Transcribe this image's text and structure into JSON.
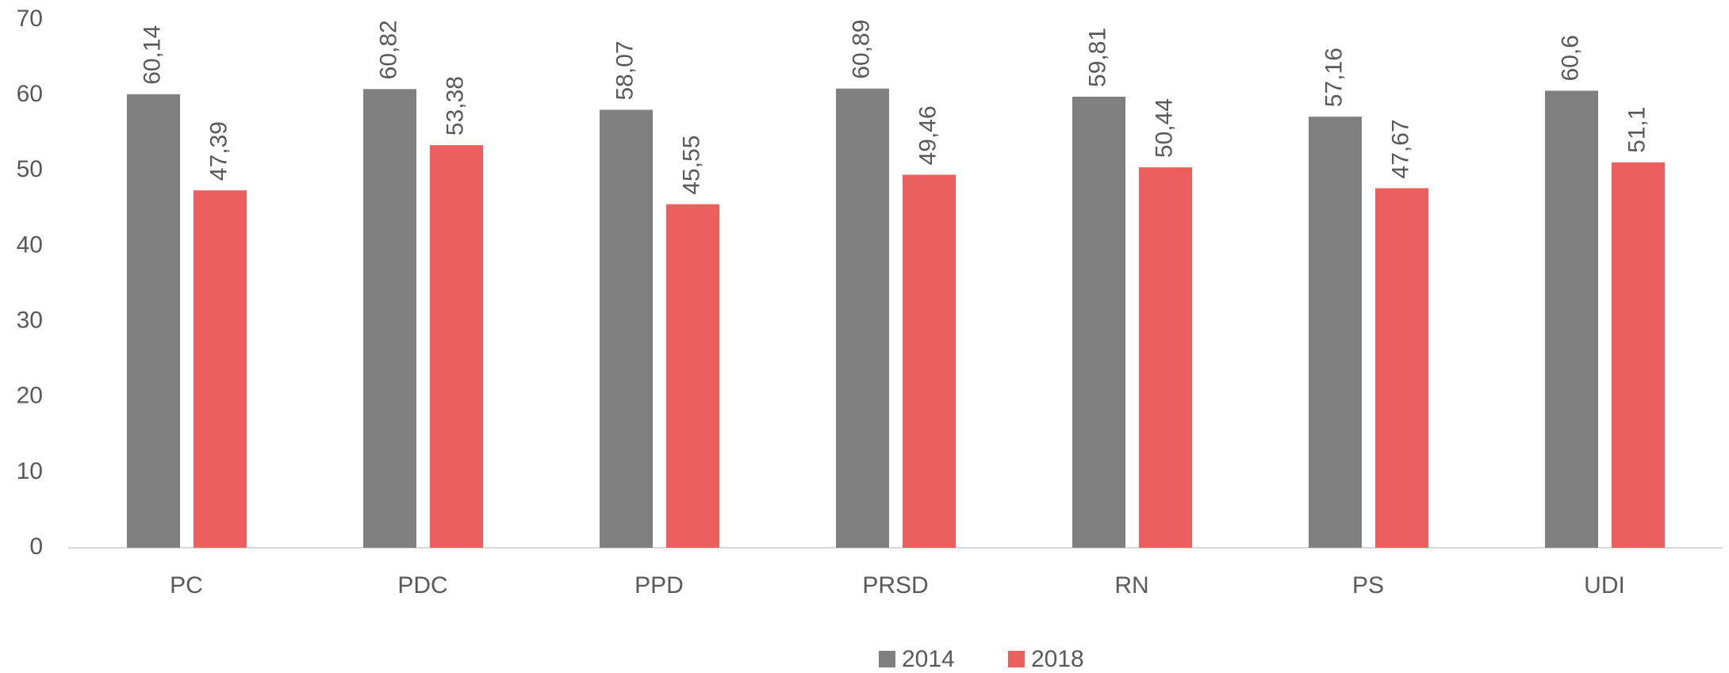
{
  "chart_data": {
    "type": "bar",
    "categories": [
      "PC",
      "PDC",
      "PPD",
      "PRSD",
      "RN",
      "PS",
      "UDI"
    ],
    "series": [
      {
        "name": "2014",
        "color": "#808080",
        "values": [
          60.14,
          60.82,
          58.07,
          60.89,
          59.81,
          57.16,
          60.6
        ],
        "value_labels": [
          "60,14",
          "60,82",
          "58,07",
          "60,89",
          "59,81",
          "57,16",
          "60,6"
        ]
      },
      {
        "name": "2018",
        "color": "#eb5f5f",
        "values": [
          47.39,
          53.38,
          45.55,
          49.46,
          50.44,
          47.67,
          51.1
        ],
        "value_labels": [
          "47,39",
          "53,38",
          "45,55",
          "49,46",
          "50,44",
          "47,67",
          "51,1"
        ]
      }
    ],
    "ylim": [
      0,
      70
    ],
    "yticks": [
      0,
      10,
      20,
      30,
      40,
      50,
      60,
      70
    ],
    "grid": false,
    "legend": "bottom"
  }
}
